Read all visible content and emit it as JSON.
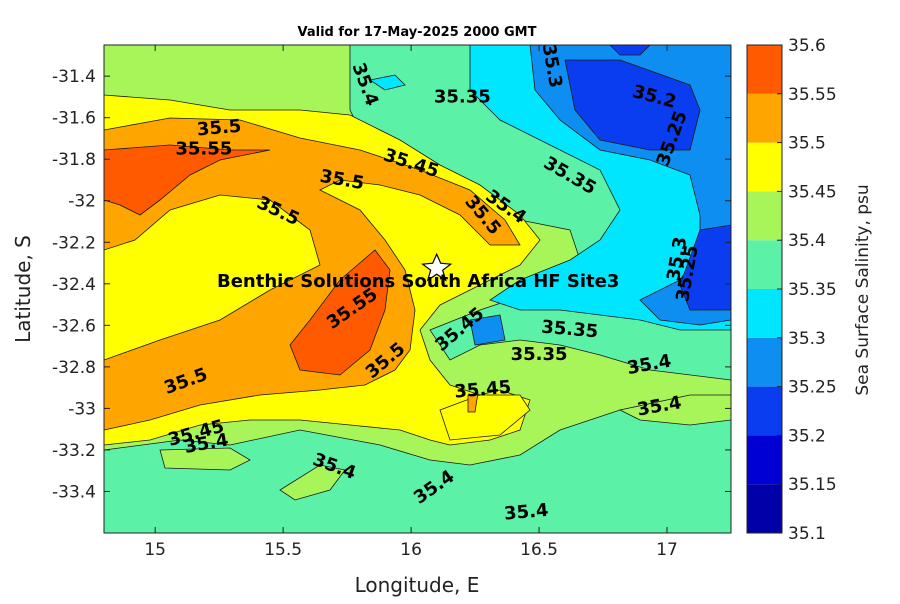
{
  "chart_data": {
    "type": "contour",
    "title": "Valid for 17-May-2025 2000 GMT",
    "xlabel": "Longitude, E",
    "ylabel": "Latitude, S",
    "colorbar_label": "Sea Surface Salinity, psu",
    "xlim": [
      14.8,
      17.25
    ],
    "ylim": [
      -33.6,
      -31.25
    ],
    "xticks": [
      15,
      15.5,
      16,
      16.5,
      17
    ],
    "yticks": [
      -31.4,
      -31.6,
      -31.8,
      -32,
      -32.2,
      -32.4,
      -32.6,
      -32.8,
      -33,
      -33.2,
      -33.4
    ],
    "xtick_labels": [
      "15",
      "15.5",
      "16",
      "16.5",
      "17"
    ],
    "ytick_labels": [
      "-31.4",
      "-31.6",
      "-31.8",
      "-32",
      "-32.2",
      "-32.4",
      "-32.6",
      "-32.8",
      "-33",
      "-33.2",
      "-33.4"
    ],
    "color_levels": [
      {
        "value": 35.1,
        "label": "35.1",
        "color": "#0000a8"
      },
      {
        "value": 35.15,
        "label": "35.15",
        "color": "#0000d4"
      },
      {
        "value": 35.2,
        "label": "35.2",
        "color": "#0a3cf0"
      },
      {
        "value": 35.25,
        "label": "35.25",
        "color": "#0e8ef0"
      },
      {
        "value": 35.3,
        "label": "35.3",
        "color": "#00e6ff"
      },
      {
        "value": 35.35,
        "label": "35.35",
        "color": "#5bf2a8"
      },
      {
        "value": 35.4,
        "label": "35.4",
        "color": "#a8f55a"
      },
      {
        "value": 35.45,
        "label": "35.45",
        "color": "#ffff00"
      },
      {
        "value": 35.5,
        "label": "35.5",
        "color": "#ffa500"
      },
      {
        "value": 35.55,
        "label": "35.55",
        "color": "#ff5a00"
      },
      {
        "value": 35.6,
        "label": "35.6",
        "color": "#ff5a00"
      }
    ],
    "site": {
      "name": "Benthic Solutions South Africa HF Site3",
      "lon": 16.1,
      "lat": -32.32
    },
    "contour_labels": [
      {
        "text": "35.3",
        "lon": 16.55,
        "lat": -31.35,
        "angle": 80
      },
      {
        "text": "35.4",
        "lon": 15.82,
        "lat": -31.44,
        "angle": 70
      },
      {
        "text": "35.35",
        "lon": 16.2,
        "lat": -31.5,
        "angle": 0
      },
      {
        "text": "35.2",
        "lon": 16.95,
        "lat": -31.5,
        "angle": 15
      },
      {
        "text": "35.25",
        "lon": 17.02,
        "lat": -31.7,
        "angle": -70
      },
      {
        "text": "35.5",
        "lon": 15.25,
        "lat": -31.65,
        "angle": -5
      },
      {
        "text": "35.55",
        "lon": 15.19,
        "lat": -31.75,
        "angle": 0
      },
      {
        "text": "35.45",
        "lon": 16.0,
        "lat": -31.82,
        "angle": 18
      },
      {
        "text": "35.35",
        "lon": 16.62,
        "lat": -31.88,
        "angle": 30
      },
      {
        "text": "35.5",
        "lon": 15.73,
        "lat": -31.9,
        "angle": 10
      },
      {
        "text": "35.5",
        "lon": 15.48,
        "lat": -32.05,
        "angle": 25
      },
      {
        "text": "35.4",
        "lon": 16.37,
        "lat": -32.03,
        "angle": 35
      },
      {
        "text": "35.5",
        "lon": 16.28,
        "lat": -32.07,
        "angle": 50
      },
      {
        "text": "35.3",
        "lon": 17.04,
        "lat": -32.28,
        "angle": -80
      },
      {
        "text": "35.25",
        "lon": 17.08,
        "lat": -32.35,
        "angle": -80
      },
      {
        "text": "35.55",
        "lon": 15.77,
        "lat": -32.52,
        "angle": -35
      },
      {
        "text": "35.45",
        "lon": 16.19,
        "lat": -32.62,
        "angle": -40
      },
      {
        "text": "35.35",
        "lon": 16.62,
        "lat": -32.62,
        "angle": 5
      },
      {
        "text": "35.35",
        "lon": 16.5,
        "lat": -32.74,
        "angle": 0
      },
      {
        "text": "35.5",
        "lon": 15.9,
        "lat": -32.77,
        "angle": -40
      },
      {
        "text": "35.4",
        "lon": 16.93,
        "lat": -32.79,
        "angle": -10
      },
      {
        "text": "35.5",
        "lon": 15.12,
        "lat": -32.87,
        "angle": -20
      },
      {
        "text": "35.45",
        "lon": 16.28,
        "lat": -32.91,
        "angle": -5
      },
      {
        "text": "35.4",
        "lon": 16.97,
        "lat": -32.99,
        "angle": -10
      },
      {
        "text": "35.45",
        "lon": 15.16,
        "lat": -33.12,
        "angle": -15
      },
      {
        "text": "35.4",
        "lon": 15.2,
        "lat": -33.17,
        "angle": -10
      },
      {
        "text": "35.4",
        "lon": 15.7,
        "lat": -33.28,
        "angle": 20
      },
      {
        "text": "35.4",
        "lon": 16.09,
        "lat": -33.38,
        "angle": -35
      },
      {
        "text": "35.4",
        "lon": 16.45,
        "lat": -33.5,
        "angle": -5
      }
    ]
  }
}
